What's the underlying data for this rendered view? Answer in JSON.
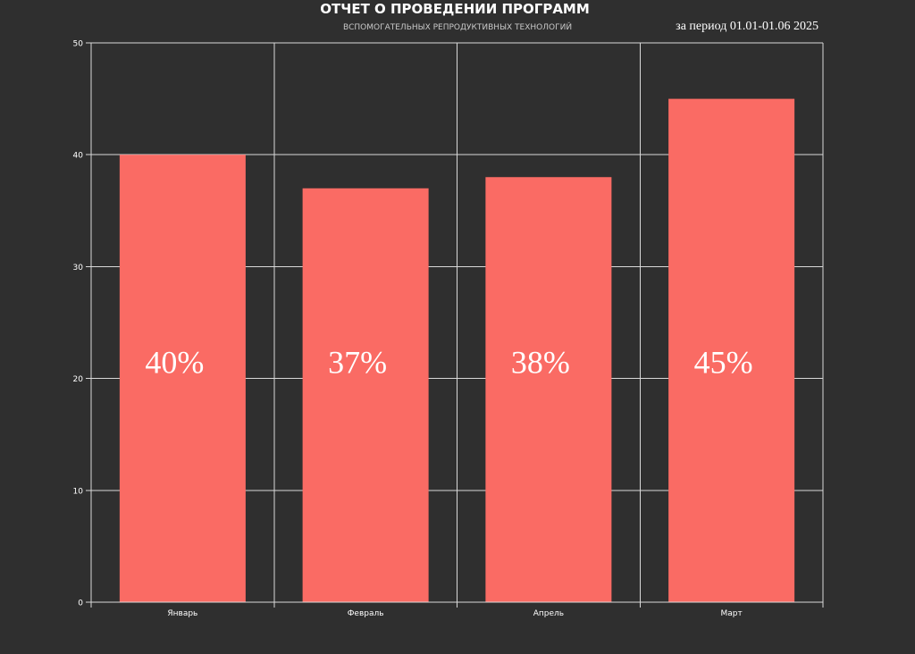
{
  "header": {
    "title": "ОТЧЕТ О ПРОВЕДЕНИИ ПРОГРАММ",
    "subtitle": "ВСПОМОГАТЕЛЬНЫХ РЕПРОДУКТИВНЫХ ТЕХНОЛОГИЙ",
    "period": "за период 01.01-01.06 2025"
  },
  "chart_data": {
    "type": "bar",
    "categories": [
      "Январь",
      "Февраль",
      "Апрель",
      "Март"
    ],
    "values": [
      40,
      37,
      38,
      45
    ],
    "data_labels": [
      "40%",
      "37%",
      "38%",
      "45%"
    ],
    "ylim": [
      0,
      50
    ],
    "yticks": [
      0,
      10,
      20,
      30,
      40,
      50
    ],
    "grid": true,
    "legend": "none",
    "colors": {
      "bar": "#fa6b64",
      "background": "#2f2f2f",
      "grid": "#d9d9d9",
      "text": "#ffffff"
    }
  }
}
